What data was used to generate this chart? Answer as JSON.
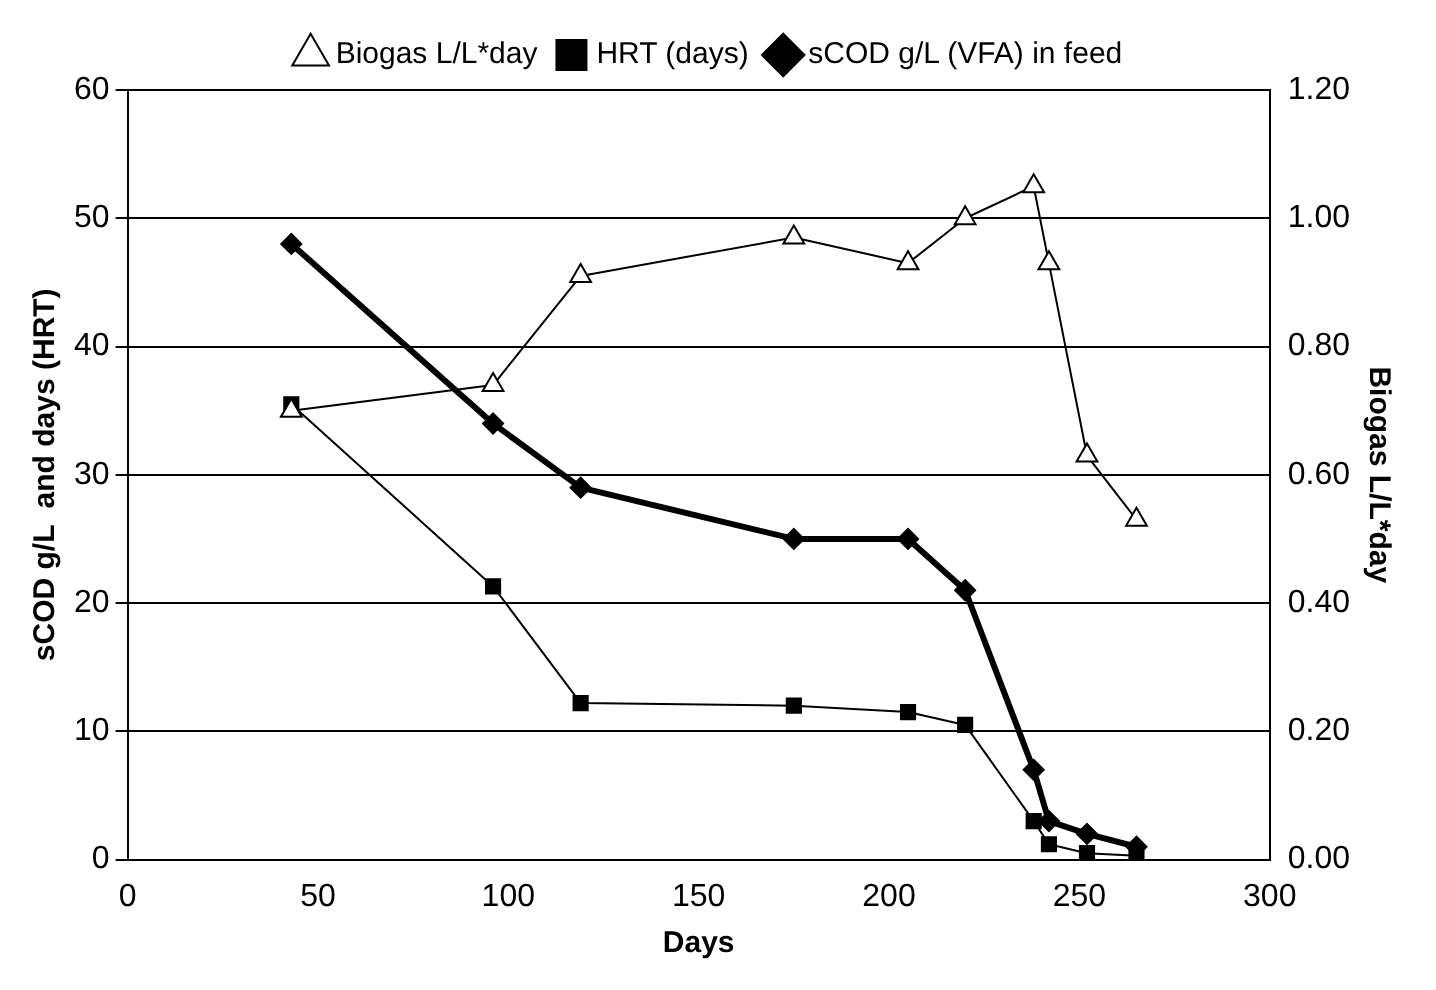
{
  "chart_data": {
    "type": "line",
    "xlabel": "Days",
    "ylabel": "sCOD g/L  and days (HRT)",
    "y2label": "Biogas L/L*day",
    "x": [
      43,
      96,
      119,
      175,
      205,
      220,
      238,
      242,
      252,
      265
    ],
    "series": [
      {
        "name": "sCOD g/L (VFA) in feed",
        "color": "#000000",
        "marker": "diamond",
        "values": [
          48,
          34,
          29,
          25,
          25,
          21,
          7,
          3,
          2,
          1
        ]
      },
      {
        "name": "HRT (days)",
        "color": "#000000",
        "marker": "square",
        "values": [
          35.5,
          21.3,
          12.2,
          12,
          11.5,
          10.5,
          3,
          1.2,
          0.5,
          0.3
        ]
      },
      {
        "name": "Biogas L/L*day",
        "color": "#000000",
        "marker": "triangle",
        "axis": "y2",
        "values": [
          0.7,
          0.74,
          0.91,
          0.97,
          0.93,
          1.0,
          1.05,
          0.93,
          0.63,
          0.53
        ]
      }
    ],
    "xlim": [
      0,
      300
    ],
    "xticks": [
      0,
      50,
      100,
      150,
      200,
      250,
      300
    ],
    "ylim": [
      0,
      60
    ],
    "yticks": [
      0,
      10,
      20,
      30,
      40,
      50,
      60
    ],
    "y2lim": [
      0,
      1.2
    ],
    "y2ticks": [
      {
        "value": 0,
        "label": "0.00"
      },
      {
        "value": 0.2,
        "label": "0.20"
      },
      {
        "value": 0.4,
        "label": "0.40"
      },
      {
        "value": 0.6,
        "label": "0.60"
      },
      {
        "value": 0.8,
        "label": "0.80"
      },
      {
        "value": 1.0,
        "label": "1.00"
      },
      {
        "value": 1.2,
        "label": "1.20"
      }
    ],
    "grid": "y",
    "legend": "top"
  }
}
